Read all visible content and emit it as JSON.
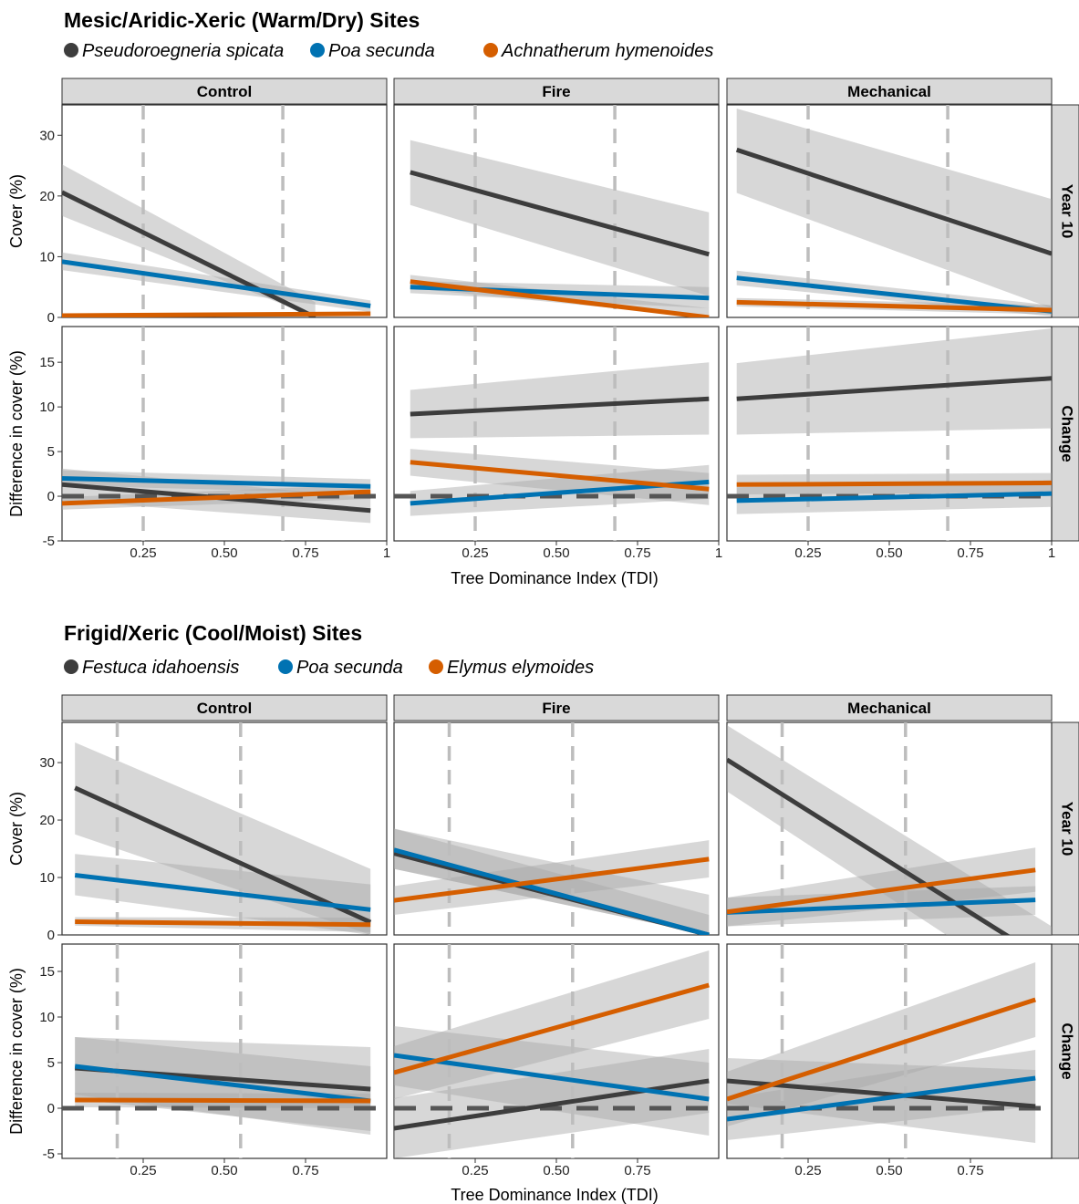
{
  "colors": {
    "series": [
      "#3d3d3d",
      "#0072b2",
      "#d55e00"
    ],
    "band": "#a6a6a6",
    "strip": "#d9d9d9",
    "threshold_line": "#bdbdbd",
    "zero_line": "#555555"
  },
  "chart_data": [
    {
      "type": "line",
      "title": "Mesic/Aridic-Xeric (Warm/Dry) Sites",
      "legend_position": "top-left",
      "legend": [
        "Pseudoroegneria spicata",
        "Poa secunda",
        "Achnatherum hymenoides"
      ],
      "facet_columns": [
        "Control",
        "Fire",
        "Mechanical"
      ],
      "facet_rows": [
        "Year 10",
        "Change"
      ],
      "xlabel": "Tree Dominance Index (TDI)",
      "ylabels": [
        "Cover (%)",
        "Difference in cover (%)"
      ],
      "xlim": [
        0.0,
        1.0
      ],
      "x_ticks": [
        0.25,
        0.5,
        0.75,
        1
      ],
      "x_tick_labels": [
        "0.25",
        "0.50",
        "0.75",
        "1"
      ],
      "row_limits": [
        [
          0,
          35
        ],
        [
          -5,
          19
        ]
      ],
      "row_ticks": [
        [
          0,
          10,
          20,
          30
        ],
        [
          -5,
          0,
          5,
          10,
          15
        ]
      ],
      "thresholds": [
        0.25,
        0.68
      ],
      "zero_line_row": 1,
      "grid": false,
      "panels": [
        {
          "facet": "Control",
          "row": "Year 10",
          "series": [
            {
              "x": [
                0.0,
                0.78
              ],
              "y": [
                20.6,
                0.0
              ],
              "lo": [
                16.7,
                0.0
              ],
              "hi": [
                25.2,
                2.5
              ]
            },
            {
              "x": [
                0.0,
                0.95
              ],
              "y": [
                9.2,
                1.9
              ],
              "lo": [
                7.8,
                0.9
              ],
              "hi": [
                10.7,
                2.8
              ]
            },
            {
              "x": [
                0.0,
                0.95
              ],
              "y": [
                0.3,
                0.6
              ],
              "lo": [
                0.1,
                0.3
              ],
              "hi": [
                0.5,
                0.9
              ]
            }
          ]
        },
        {
          "facet": "Fire",
          "row": "Year 10",
          "series": [
            {
              "x": [
                0.05,
                0.97
              ],
              "y": [
                23.9,
                10.4
              ],
              "lo": [
                18.5,
                3.5
              ],
              "hi": [
                29.2,
                17.3
              ]
            },
            {
              "x": [
                0.05,
                0.97
              ],
              "y": [
                5.0,
                3.2
              ],
              "lo": [
                4.0,
                1.5
              ],
              "hi": [
                6.0,
                5.0
              ]
            },
            {
              "x": [
                0.05,
                0.97
              ],
              "y": [
                5.9,
                0.0
              ],
              "lo": [
                4.8,
                0.0
              ],
              "hi": [
                7.0,
                1.5
              ]
            }
          ]
        },
        {
          "facet": "Mechanical",
          "row": "Year 10",
          "series": [
            {
              "x": [
                0.03,
                1.0
              ],
              "y": [
                27.6,
                10.5
              ],
              "lo": [
                20.5,
                1.5
              ],
              "hi": [
                34.4,
                19.5
              ]
            },
            {
              "x": [
                0.03,
                1.0
              ],
              "y": [
                6.5,
                1.0
              ],
              "lo": [
                5.3,
                0.2
              ],
              "hi": [
                7.7,
                2.0
              ]
            },
            {
              "x": [
                0.03,
                1.0
              ],
              "y": [
                2.5,
                1.2
              ],
              "lo": [
                1.8,
                0.5
              ],
              "hi": [
                3.2,
                2.0
              ]
            }
          ]
        },
        {
          "facet": "Control",
          "row": "Change",
          "series": [
            {
              "x": [
                0.0,
                0.95
              ],
              "y": [
                1.3,
                -1.6
              ],
              "lo": [
                -0.5,
                -3.0
              ],
              "hi": [
                3.1,
                -0.2
              ]
            },
            {
              "x": [
                0.0,
                0.95
              ],
              "y": [
                2.0,
                1.1
              ],
              "lo": [
                1.2,
                0.3
              ],
              "hi": [
                2.9,
                1.9
              ]
            },
            {
              "x": [
                0.0,
                0.95
              ],
              "y": [
                -0.8,
                0.5
              ],
              "lo": [
                -1.5,
                -0.3
              ],
              "hi": [
                -0.1,
                1.3
              ]
            }
          ]
        },
        {
          "facet": "Fire",
          "row": "Change",
          "series": [
            {
              "x": [
                0.05,
                0.97
              ],
              "y": [
                9.2,
                10.9
              ],
              "lo": [
                6.5,
                6.9
              ],
              "hi": [
                11.9,
                15.0
              ]
            },
            {
              "x": [
                0.05,
                0.97
              ],
              "y": [
                -0.8,
                1.6
              ],
              "lo": [
                -2.2,
                -0.3
              ],
              "hi": [
                0.6,
                3.5
              ]
            },
            {
              "x": [
                0.05,
                0.97
              ],
              "y": [
                3.8,
                0.8
              ],
              "lo": [
                2.3,
                -1.0
              ],
              "hi": [
                5.3,
                2.6
              ]
            }
          ]
        },
        {
          "facet": "Mechanical",
          "row": "Change",
          "series": [
            {
              "x": [
                0.03,
                1.0
              ],
              "y": [
                10.9,
                13.2
              ],
              "lo": [
                6.9,
                7.6
              ],
              "hi": [
                14.9,
                18.8
              ]
            },
            {
              "x": [
                0.03,
                1.0
              ],
              "y": [
                -0.5,
                0.3
              ],
              "lo": [
                -2.0,
                -1.2
              ],
              "hi": [
                1.0,
                1.8
              ]
            },
            {
              "x": [
                0.03,
                1.0
              ],
              "y": [
                1.3,
                1.5
              ],
              "lo": [
                0.2,
                0.4
              ],
              "hi": [
                2.4,
                2.6
              ]
            }
          ]
        }
      ]
    },
    {
      "type": "line",
      "title": "Frigid/Xeric (Cool/Moist) Sites",
      "legend_position": "top-left",
      "legend": [
        "Festuca idahoensis",
        "Poa secunda",
        "Elymus elymoides"
      ],
      "facet_columns": [
        "Control",
        "Fire",
        "Mechanical"
      ],
      "facet_rows": [
        "Year 10",
        "Change"
      ],
      "xlabel": "Tree Dominance Index (TDI)",
      "ylabels": [
        "Cover (%)",
        "Difference in cover (%)"
      ],
      "xlim": [
        0.0,
        1.0
      ],
      "x_ticks": [
        0.25,
        0.5,
        0.75
      ],
      "x_tick_labels": [
        "0.25",
        "0.50",
        "0.75"
      ],
      "row_limits": [
        [
          0,
          37
        ],
        [
          -5.5,
          18
        ]
      ],
      "row_ticks": [
        [
          0,
          10,
          20,
          30
        ],
        [
          -5,
          0,
          5,
          10,
          15
        ]
      ],
      "thresholds": [
        0.17,
        0.55
      ],
      "zero_line_row": 1,
      "grid": false,
      "panels": [
        {
          "facet": "Control",
          "row": "Year 10",
          "series": [
            {
              "x": [
                0.04,
                0.95
              ],
              "y": [
                25.6,
                2.2
              ],
              "lo": [
                17.5,
                0.0
              ],
              "hi": [
                33.5,
                11.5
              ]
            },
            {
              "x": [
                0.04,
                0.95
              ],
              "y": [
                10.4,
                4.4
              ],
              "lo": [
                6.9,
                0.0
              ],
              "hi": [
                14.1,
                8.8
              ]
            },
            {
              "x": [
                0.04,
                0.95
              ],
              "y": [
                2.3,
                1.8
              ],
              "lo": [
                1.6,
                0.5
              ],
              "hi": [
                3.1,
                3.0
              ]
            }
          ]
        },
        {
          "facet": "Fire",
          "row": "Year 10",
          "series": [
            {
              "x": [
                0.0,
                0.97
              ],
              "y": [
                14.2,
                0.0
              ],
              "lo": [
                11.5,
                0.0
              ],
              "hi": [
                18.5,
                7.0
              ]
            },
            {
              "x": [
                0.0,
                0.97
              ],
              "y": [
                14.8,
                0.0
              ],
              "lo": [
                11.5,
                0.0
              ],
              "hi": [
                18.5,
                3.5
              ]
            },
            {
              "x": [
                0.0,
                0.97
              ],
              "y": [
                6.0,
                13.2
              ],
              "lo": [
                3.5,
                10.0
              ],
              "hi": [
                8.5,
                16.5
              ]
            }
          ]
        },
        {
          "facet": "Mechanical",
          "row": "Year 10",
          "series": [
            {
              "x": [
                0.0,
                1.0
              ],
              "y": [
                30.5,
                -5.0
              ],
              "lo": [
                25.0,
                -12.0
              ],
              "hi": [
                36.5,
                1.5
              ]
            },
            {
              "x": [
                0.0,
                0.95
              ],
              "y": [
                3.9,
                6.1
              ],
              "lo": [
                1.5,
                3.5
              ],
              "hi": [
                6.5,
                8.5
              ]
            },
            {
              "x": [
                0.0,
                0.95
              ],
              "y": [
                4.0,
                11.3
              ],
              "lo": [
                1.5,
                7.5
              ],
              "hi": [
                6.5,
                15.2
              ]
            }
          ]
        },
        {
          "facet": "Control",
          "row": "Change",
          "series": [
            {
              "x": [
                0.04,
                0.95
              ],
              "y": [
                4.4,
                2.1
              ],
              "lo": [
                1.0,
                -2.5
              ],
              "hi": [
                7.8,
                6.7
              ]
            },
            {
              "x": [
                0.04,
                0.95
              ],
              "y": [
                4.6,
                0.8
              ],
              "lo": [
                1.5,
                -2.9
              ],
              "hi": [
                7.8,
                4.6
              ]
            },
            {
              "x": [
                0.04,
                0.95
              ],
              "y": [
                0.9,
                0.8
              ],
              "lo": [
                0.1,
                0.0
              ],
              "hi": [
                1.7,
                1.6
              ]
            }
          ]
        },
        {
          "facet": "Fire",
          "row": "Change",
          "series": [
            {
              "x": [
                0.0,
                0.97
              ],
              "y": [
                -2.2,
                3.0
              ],
              "lo": [
                -5.5,
                -0.5
              ],
              "hi": [
                1.1,
                6.5
              ]
            },
            {
              "x": [
                0.0,
                0.97
              ],
              "y": [
                5.8,
                1.0
              ],
              "lo": [
                2.5,
                -3.0
              ],
              "hi": [
                9.0,
                5.0
              ]
            },
            {
              "x": [
                0.0,
                0.97
              ],
              "y": [
                3.9,
                13.5
              ],
              "lo": [
                1.0,
                9.8
              ],
              "hi": [
                6.8,
                17.3
              ]
            }
          ]
        },
        {
          "facet": "Mechanical",
          "row": "Change",
          "series": [
            {
              "x": [
                0.0,
                0.95
              ],
              "y": [
                3.0,
                0.2
              ],
              "lo": [
                0.5,
                -3.8
              ],
              "hi": [
                5.5,
                4.2
              ]
            },
            {
              "x": [
                0.0,
                0.95
              ],
              "y": [
                -1.2,
                3.3
              ],
              "lo": [
                -3.5,
                0.2
              ],
              "hi": [
                1.1,
                6.4
              ]
            },
            {
              "x": [
                0.0,
                0.95
              ],
              "y": [
                1.0,
                11.9
              ],
              "lo": [
                -2.0,
                7.8
              ],
              "hi": [
                4.0,
                16.0
              ]
            }
          ]
        }
      ]
    }
  ]
}
